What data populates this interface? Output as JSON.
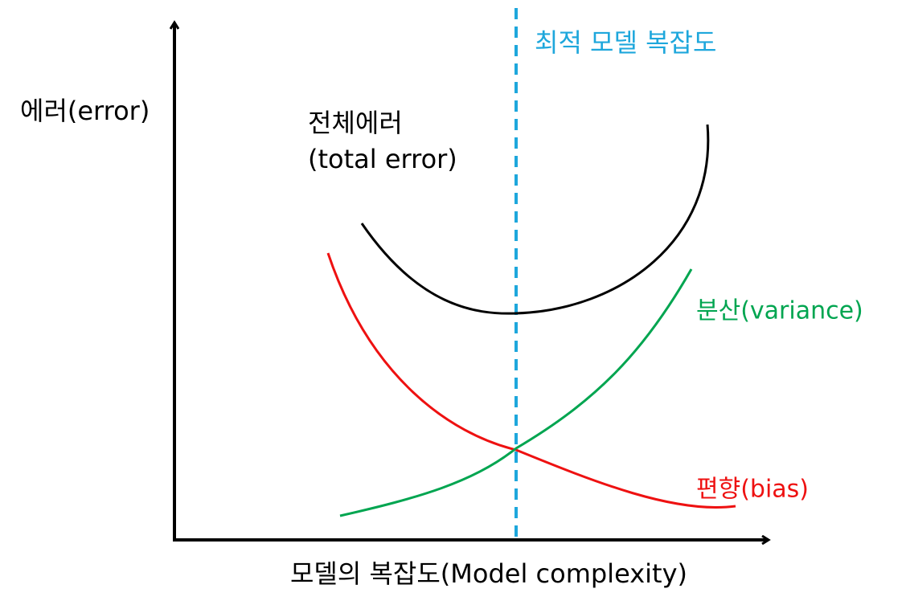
{
  "axis": {
    "y_label": "에러(error)",
    "x_label": "모델의 복잡도(Model complexity)"
  },
  "curves": {
    "total": [
      "전체에러",
      "(total error)"
    ],
    "variance": "분산(variance)",
    "bias": "편향(bias)"
  },
  "optimum": "최적 모델 복잡도"
}
